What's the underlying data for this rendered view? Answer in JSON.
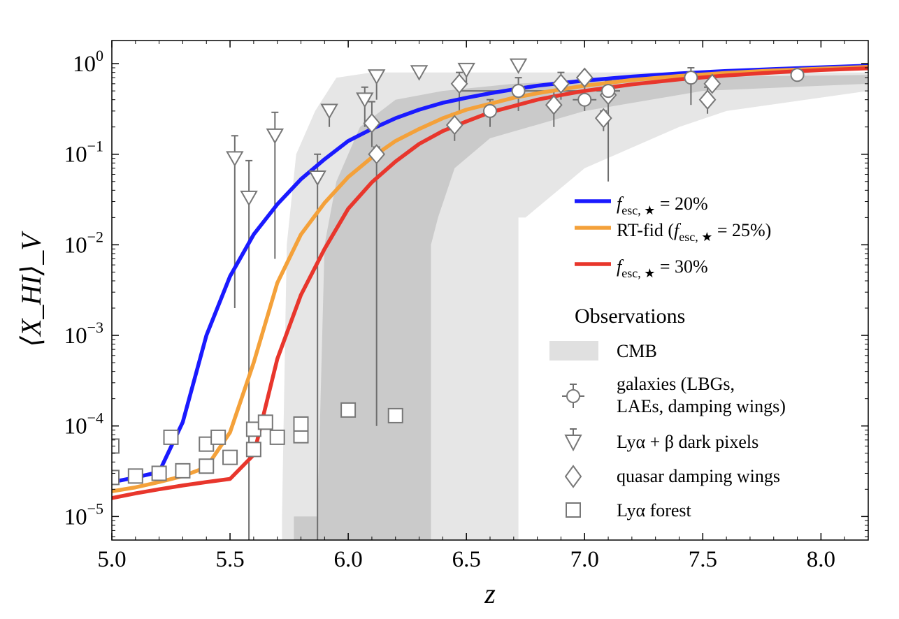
{
  "chart_data": {
    "type": "line",
    "xlabel": "z",
    "ylabel": "⟨X_HI⟩_V",
    "xlim": [
      5.0,
      8.2
    ],
    "ylim": [
      5.5e-06,
      1.8
    ],
    "yscale": "log",
    "x_ticks": [
      5.0,
      5.5,
      6.0,
      6.5,
      7.0,
      7.5,
      8.0
    ],
    "x_tick_labels": [
      "5.0",
      "5.5",
      "6.0",
      "6.5",
      "7.0",
      "7.5",
      "8.0"
    ],
    "y_ticks": [
      {
        "value": 1e-05,
        "base": "10",
        "exp": "−5"
      },
      {
        "value": 0.0001,
        "base": "10",
        "exp": "−4"
      },
      {
        "value": 0.001,
        "base": "10",
        "exp": "−3"
      },
      {
        "value": 0.01,
        "base": "10",
        "exp": "−2"
      },
      {
        "value": 0.1,
        "base": "10",
        "exp": "−1"
      },
      {
        "value": 1,
        "base": "10",
        "exp": "0"
      }
    ],
    "series": [
      {
        "name": "f_esc,★ = 20%",
        "label_sym": "f",
        "label_sub": "esc, ★",
        "label_rest": " = 20%",
        "color": "#1a1aff",
        "x": [
          5.0,
          5.1,
          5.2,
          5.3,
          5.4,
          5.5,
          5.6,
          5.7,
          5.8,
          5.9,
          6.0,
          6.1,
          6.2,
          6.3,
          6.4,
          6.5,
          6.6,
          6.7,
          6.8,
          6.9,
          7.0,
          7.2,
          7.4,
          7.6,
          7.8,
          8.0,
          8.2
        ],
        "y": [
          2.4e-05,
          2.7e-05,
          3.1e-05,
          0.00011,
          0.001,
          0.0045,
          0.013,
          0.028,
          0.053,
          0.088,
          0.14,
          0.19,
          0.25,
          0.31,
          0.37,
          0.42,
          0.47,
          0.52,
          0.57,
          0.61,
          0.65,
          0.72,
          0.78,
          0.83,
          0.87,
          0.91,
          0.95
        ]
      },
      {
        "name": "RT-fid (f_esc,★ = 25%)",
        "label_sym": "f",
        "label_sub": "esc, ★",
        "label_rest": " = 25%)",
        "label_prefix": "RT-fid (",
        "color": "#f4a13a",
        "x": [
          5.0,
          5.1,
          5.2,
          5.3,
          5.4,
          5.5,
          5.6,
          5.7,
          5.8,
          5.9,
          6.0,
          6.1,
          6.2,
          6.3,
          6.4,
          6.5,
          6.6,
          6.7,
          6.8,
          6.9,
          7.0,
          7.2,
          7.4,
          7.6,
          7.8,
          8.0,
          8.2
        ],
        "y": [
          1.9e-05,
          2.1e-05,
          2.4e-05,
          2.8e-05,
          3.5e-05,
          8.5e-05,
          0.0005,
          0.0038,
          0.013,
          0.029,
          0.056,
          0.092,
          0.14,
          0.19,
          0.25,
          0.31,
          0.36,
          0.42,
          0.47,
          0.52,
          0.57,
          0.66,
          0.73,
          0.79,
          0.84,
          0.88,
          0.92
        ]
      },
      {
        "name": "f_esc,★ = 30%",
        "label_sym": "f",
        "label_sub": "esc, ★",
        "label_rest": " = 30%",
        "color": "#e8362c",
        "x": [
          5.0,
          5.1,
          5.2,
          5.3,
          5.4,
          5.5,
          5.6,
          5.7,
          5.8,
          5.9,
          6.0,
          6.1,
          6.2,
          6.3,
          6.4,
          6.5,
          6.6,
          6.7,
          6.8,
          6.9,
          7.0,
          7.2,
          7.4,
          7.6,
          7.8,
          8.0,
          8.2
        ],
        "y": [
          1.6e-05,
          1.8e-05,
          2e-05,
          2.2e-05,
          2.4e-05,
          2.6e-05,
          4.8e-05,
          0.00055,
          0.0028,
          0.009,
          0.025,
          0.049,
          0.083,
          0.13,
          0.18,
          0.23,
          0.29,
          0.34,
          0.4,
          0.45,
          0.5,
          0.59,
          0.67,
          0.74,
          0.8,
          0.85,
          0.89
        ]
      }
    ],
    "cmb_bands": [
      {
        "name": "CMB outer",
        "color": "#e6e6e6",
        "upper": [
          [
            5.72,
            1e-05
          ],
          [
            5.74,
            0.01
          ],
          [
            5.78,
            0.1
          ],
          [
            5.86,
            0.3
          ],
          [
            5.95,
            0.7
          ],
          [
            6.1,
            0.8
          ],
          [
            8.2,
            0.8
          ]
        ],
        "lower": [
          [
            8.2,
            0.5
          ],
          [
            7.6,
            0.3
          ],
          [
            7.4,
            0.2
          ],
          [
            7.0,
            0.07
          ],
          [
            6.75,
            0.02
          ],
          [
            6.72,
            0.02
          ],
          [
            6.72,
            5.5e-06
          ],
          [
            5.72,
            5.5e-06
          ]
        ]
      },
      {
        "name": "CMB inner",
        "color": "#cacaca",
        "upper": [
          [
            5.87,
            1e-05
          ],
          [
            5.9,
            0.01
          ],
          [
            5.95,
            0.05
          ],
          [
            6.05,
            0.2
          ],
          [
            6.2,
            0.4
          ],
          [
            6.4,
            0.5
          ],
          [
            6.7,
            0.6
          ],
          [
            7.2,
            0.7
          ],
          [
            8.2,
            0.75
          ]
        ],
        "lower": [
          [
            8.2,
            0.6
          ],
          [
            7.5,
            0.5
          ],
          [
            7.0,
            0.3
          ],
          [
            6.6,
            0.15
          ],
          [
            6.45,
            0.07
          ],
          [
            6.38,
            0.02
          ],
          [
            6.35,
            0.01
          ],
          [
            6.35,
            5.5e-06
          ],
          [
            5.87,
            5.5e-06
          ]
        ]
      },
      {
        "name": "CMB sliver",
        "color": "#cacaca",
        "upper": [
          [
            5.77,
            1e-05
          ],
          [
            5.87,
            1e-05
          ]
        ],
        "lower": [
          [
            5.87,
            5.5e-06
          ],
          [
            5.77,
            5.5e-06
          ]
        ]
      }
    ],
    "galaxies": [
      {
        "x": 6.6,
        "y": 0.3,
        "yerr_lo": 0.2,
        "yerr_hi": 0.4,
        "xerr": 0.0
      },
      {
        "x": 6.72,
        "y": 0.5,
        "yerr_lo": 0.3,
        "yerr_hi": 0.7,
        "xerr": 0.25
      },
      {
        "x": 7.0,
        "y": 0.4,
        "yerr_lo": 0.3,
        "yerr_hi": 0.6,
        "xerr": 0.05
      },
      {
        "x": 7.1,
        "y": 0.5,
        "yerr_lo": 0.35,
        "yerr_hi": 0.65,
        "xerr": 0.05
      },
      {
        "x": 7.45,
        "y": 0.7,
        "yerr_lo": 0.35,
        "yerr_hi": 0.9,
        "xerr": 0.05
      },
      {
        "x": 7.9,
        "y": 0.75,
        "yerr_lo": 0.7,
        "yerr_hi": 0.85,
        "xerr": 0.0
      }
    ],
    "dark_pixels": [
      {
        "x": 5.52,
        "y": 0.09,
        "yerr_lo": 0.002,
        "yerr_hi": 0.16
      },
      {
        "x": 5.58,
        "y": 0.033,
        "yerr_lo": 5.5e-06,
        "yerr_hi": 0.085
      },
      {
        "x": 5.69,
        "y": 0.16,
        "yerr_lo": 0.007,
        "yerr_hi": 0.29
      },
      {
        "x": 5.87,
        "y": 0.055,
        "yerr_lo": 5.5e-06,
        "yerr_hi": 0.1
      },
      {
        "x": 5.92,
        "y": 0.3,
        "yerr_lo": 0.2,
        "yerr_hi": 0.35
      },
      {
        "x": 6.07,
        "y": 0.4,
        "yerr_lo": 0.2,
        "yerr_hi": 0.55
      },
      {
        "x": 6.12,
        "y": 0.72,
        "yerr_lo": 0.4,
        "yerr_hi": 0.8
      },
      {
        "x": 6.3,
        "y": 0.8,
        "yerr_lo": 0.8,
        "yerr_hi": 0.8
      },
      {
        "x": 6.5,
        "y": 0.85,
        "yerr_lo": 0.6,
        "yerr_hi": 0.9
      },
      {
        "x": 6.72,
        "y": 0.95,
        "yerr_lo": 0.95,
        "yerr_hi": 0.95
      }
    ],
    "quasar_wings": [
      {
        "x": 6.1,
        "y": 0.22,
        "yerr_lo": 0.12,
        "yerr_hi": 0.38
      },
      {
        "x": 6.12,
        "y": 0.1,
        "yerr_lo": 0.0001,
        "yerr_hi": 0.12
      },
      {
        "x": 6.45,
        "y": 0.21,
        "yerr_lo": 0.14,
        "yerr_hi": 0.28
      },
      {
        "x": 6.47,
        "y": 0.6,
        "yerr_lo": 0.3,
        "yerr_hi": 0.8
      },
      {
        "x": 6.87,
        "y": 0.35,
        "yerr_lo": 0.2,
        "yerr_hi": 0.5
      },
      {
        "x": 6.9,
        "y": 0.6,
        "yerr_lo": 0.4,
        "yerr_hi": 0.8
      },
      {
        "x": 7.0,
        "y": 0.7,
        "yerr_lo": 0.5,
        "yerr_hi": 0.8
      },
      {
        "x": 7.08,
        "y": 0.25,
        "yerr_lo": 0.18,
        "yerr_hi": 0.3
      },
      {
        "x": 7.1,
        "y": 0.45,
        "yerr_lo": 0.05,
        "yerr_hi": 0.7
      },
      {
        "x": 7.52,
        "y": 0.4,
        "yerr_lo": 0.28,
        "yerr_hi": 0.55
      },
      {
        "x": 7.54,
        "y": 0.6,
        "yerr_lo": 0.5,
        "yerr_hi": 0.75
      }
    ],
    "lya_forest": [
      {
        "x": 5.0,
        "y": 6e-05
      },
      {
        "x": 5.0,
        "y": 2.7e-05
      },
      {
        "x": 5.1,
        "y": 2.8e-05
      },
      {
        "x": 5.2,
        "y": 3e-05
      },
      {
        "x": 5.3,
        "y": 3.2e-05
      },
      {
        "x": 5.25,
        "y": 7.5e-05
      },
      {
        "x": 5.4,
        "y": 3.6e-05
      },
      {
        "x": 5.4,
        "y": 6.3e-05
      },
      {
        "x": 5.45,
        "y": 7.5e-05
      },
      {
        "x": 5.5,
        "y": 4.5e-05
      },
      {
        "x": 5.6,
        "y": 5.5e-05
      },
      {
        "x": 5.6,
        "y": 9.2e-05
      },
      {
        "x": 5.65,
        "y": 0.00011
      },
      {
        "x": 5.7,
        "y": 7.5e-05
      },
      {
        "x": 5.8,
        "y": 7.8e-05
      },
      {
        "x": 5.8,
        "y": 0.000105
      },
      {
        "x": 6.0,
        "y": 0.00015
      },
      {
        "x": 6.2,
        "y": 0.00013
      }
    ],
    "legend": {
      "title": "Observations",
      "cmb": "CMB",
      "galaxies_line1": "galaxies (LBGs,",
      "galaxies_line2": "LAEs, damping wings)",
      "dark_pixels": "Lyα + β dark pixels",
      "quasar": "quasar damping wings",
      "forest": "Lyα forest"
    },
    "marker_color": "#6e6e6e",
    "marker_edge": "#777777",
    "cmb_legend_color": "#e0e0e0"
  }
}
